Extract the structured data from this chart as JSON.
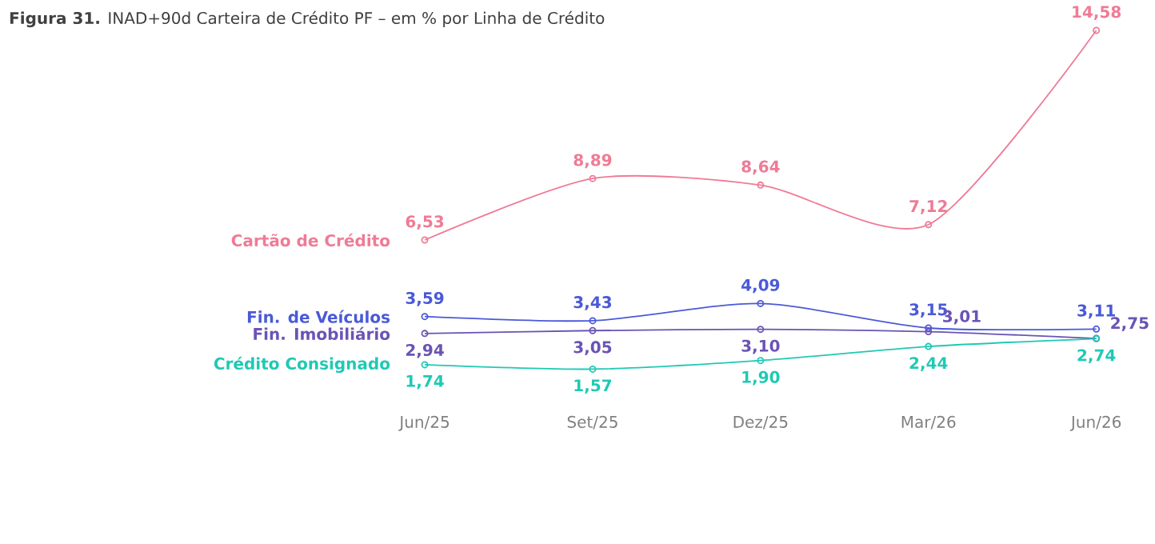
{
  "chart_data": {
    "type": "line",
    "title": "**Figura 31.** INAD+90d Carteira de Crédito PF – em % por Linha de Crédito",
    "categories": [
      "Jun/25",
      "Set/25",
      "Dez/25",
      "Mar/26",
      "Jun/26"
    ],
    "series": [
      {
        "name": "Cartão de Crédito",
        "color": "#ef7b96",
        "values": [
          6.53,
          8.89,
          8.64,
          7.12,
          14.58
        ],
        "value_labels": [
          "6,53",
          "8,89",
          "8,64",
          "7,12",
          "14,58"
        ]
      },
      {
        "name": "Fin. de Veículos",
        "color": "#4a5ad8",
        "values": [
          3.59,
          3.43,
          4.09,
          3.15,
          3.11
        ],
        "value_labels": [
          "3,59",
          "3,43",
          "4,09",
          "3,15",
          "3,11"
        ]
      },
      {
        "name": "Fin. Imobiliário",
        "color": "#6a54b4",
        "values": [
          2.94,
          3.05,
          3.1,
          3.01,
          2.75
        ],
        "value_labels": [
          "2,94",
          "3,05",
          "3,10",
          "3,01",
          "2,75"
        ]
      },
      {
        "name": "Crédito Consignado",
        "color": "#1fc9b4",
        "values": [
          1.74,
          1.57,
          1.9,
          2.44,
          2.74
        ],
        "value_labels": [
          "1,74",
          "1,57",
          "1,90",
          "2,44",
          "2,74"
        ]
      }
    ],
    "marker": "circle"
  }
}
